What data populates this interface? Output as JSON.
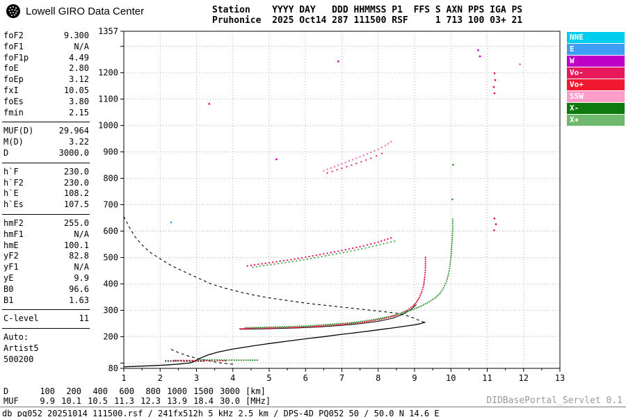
{
  "header": {
    "brand": "Lowell GIRO Data Center",
    "logo_icon": "giro-globe-icon",
    "station_line1": "Station    YYYY DAY   DDD HHMMSS P1  FFS S AXN PPS IGA PS",
    "station_line2": "Pruhonice  2025 Oct14 287 111500 RSF     1 713 100 03+ 21"
  },
  "params": {
    "groups": [
      {
        "rows": [
          [
            "foF2",
            "9.300"
          ],
          [
            "foF1",
            "N/A"
          ],
          [
            "foF1p",
            "4.49"
          ],
          [
            "foE",
            "2.80"
          ],
          [
            "foEp",
            "3.12"
          ],
          [
            "fxI",
            "10.05"
          ],
          [
            "foEs",
            "3.80"
          ],
          [
            "fmin",
            "2.15"
          ]
        ]
      },
      {
        "rows": [
          [
            "MUF(D)",
            "29.964"
          ],
          [
            "M(D)",
            "3.22"
          ],
          [
            "D",
            "3000.0"
          ]
        ]
      },
      {
        "rows": [
          [
            "h`F",
            "230.0"
          ],
          [
            "h`F2",
            "230.0"
          ],
          [
            "h`E",
            "108.2"
          ],
          [
            "h`Es",
            "107.5"
          ]
        ]
      },
      {
        "rows": [
          [
            "hmF2",
            "255.0"
          ],
          [
            "hmF1",
            "N/A"
          ],
          [
            "hmE",
            "100.1"
          ],
          [
            "yF2",
            "82.8"
          ],
          [
            "yF1",
            "N/A"
          ],
          [
            "yE",
            "9.9"
          ],
          [
            "B0",
            "96.6"
          ],
          [
            "B1",
            "1.63"
          ]
        ]
      },
      {
        "rows": [
          [
            "C-level",
            "11"
          ]
        ]
      }
    ],
    "auto_lines": [
      "Auto:",
      "Artist5",
      "500200"
    ]
  },
  "legend": {
    "items": [
      {
        "label": "NNE",
        "color": "#00CCEE"
      },
      {
        "label": "E",
        "color": "#3E9EF5"
      },
      {
        "label": "W",
        "color": "#BE00C8"
      },
      {
        "label": "Vo-",
        "color": "#E8185C"
      },
      {
        "label": "Vo+",
        "color": "#F01830"
      },
      {
        "label": "SSW",
        "color": "#FF9CC8"
      },
      {
        "label": "X-",
        "color": "#0E7A0E"
      },
      {
        "label": "X+",
        "color": "#6FB96F"
      }
    ]
  },
  "bottom_table": {
    "rows": [
      {
        "label": "D",
        "values": [
          "100",
          "200",
          "400",
          "600",
          "800",
          "1000",
          "1500",
          "3000"
        ],
        "unit": "[km]"
      },
      {
        "label": "MUF",
        "values": [
          "9.9",
          "10.1",
          "10.5",
          "11.3",
          "12.3",
          "13.9",
          "18.4",
          "30.0"
        ],
        "unit": "[MHz]"
      }
    ]
  },
  "footer": {
    "watermark": "DIDBasePortal_Servlet 0.1",
    "status": "db pq052 20251014 111500.rsf / 241fx512h 5 kHz 2.5 km / DPS-4D PQ052 50 / 50.0 N 14.6 E"
  },
  "chart_data": {
    "type": "scatter",
    "xlabel": "[MHz]",
    "ylabel": "",
    "xlim": [
      1,
      13
    ],
    "ylim": [
      80,
      1357
    ],
    "x_ticks": [
      1,
      2,
      3,
      4,
      5,
      6,
      7,
      8,
      9,
      10,
      11,
      12,
      13
    ],
    "y_tick_labels": [
      1357,
      1200,
      1100,
      1000,
      900,
      800,
      700,
      600,
      500,
      400,
      300,
      200,
      80
    ],
    "y_tick_marks": [
      80,
      100,
      200,
      300,
      400,
      500,
      600,
      700,
      800,
      900,
      1000,
      1100,
      1200,
      1300,
      1357
    ],
    "grid_h": [
      100,
      200,
      300,
      400,
      500,
      600,
      700,
      800,
      900,
      1000,
      1100,
      1200,
      1300
    ],
    "grid_v": [
      2,
      3,
      4,
      5,
      6,
      7,
      8,
      9,
      10,
      11,
      12
    ],
    "series": [
      {
        "name": "muf-transmission-curve",
        "mode": "line",
        "color": "#000000",
        "dash": "4,4",
        "width": 1.1,
        "points": [
          [
            1.0,
            655
          ],
          [
            1.15,
            615
          ],
          [
            1.3,
            580
          ],
          [
            1.5,
            548
          ],
          [
            1.7,
            522
          ],
          [
            2.0,
            495
          ],
          [
            2.3,
            470
          ],
          [
            2.6,
            450
          ],
          [
            3.0,
            425
          ],
          [
            3.4,
            400
          ],
          [
            3.8,
            383
          ],
          [
            4.2,
            369
          ],
          [
            4.6,
            357
          ],
          [
            5.0,
            347
          ],
          [
            5.4,
            339
          ],
          [
            5.8,
            331
          ],
          [
            6.2,
            324
          ],
          [
            6.6,
            318
          ],
          [
            7.0,
            312
          ],
          [
            7.4,
            306
          ],
          [
            7.8,
            300
          ],
          [
            8.2,
            294
          ],
          [
            8.5,
            289
          ],
          [
            8.7,
            283
          ],
          [
            8.9,
            275
          ],
          [
            9.05,
            266
          ],
          [
            9.2,
            258
          ],
          [
            9.3,
            252
          ]
        ]
      },
      {
        "name": "e-transmission-curve",
        "mode": "line",
        "color": "#000000",
        "dash": "4,4",
        "width": 1.1,
        "points": [
          [
            2.3,
            152
          ],
          [
            2.5,
            140
          ],
          [
            2.7,
            130
          ],
          [
            2.9,
            122
          ],
          [
            3.1,
            115
          ],
          [
            3.3,
            109
          ],
          [
            3.5,
            104
          ],
          [
            3.7,
            100
          ],
          [
            3.9,
            97
          ],
          [
            4.05,
            95
          ]
        ]
      },
      {
        "name": "true-height-profile",
        "mode": "line",
        "color": "#000000",
        "width": 1.3,
        "points": [
          [
            1.0,
            86
          ],
          [
            1.4,
            88
          ],
          [
            1.8,
            90
          ],
          [
            2.2,
            93
          ],
          [
            2.5,
            96
          ],
          [
            2.7,
            99
          ],
          [
            2.8,
            100
          ],
          [
            2.9,
            104
          ],
          [
            3.1,
            118
          ],
          [
            3.3,
            130
          ],
          [
            3.6,
            142
          ],
          [
            4.0,
            153
          ],
          [
            4.5,
            164
          ],
          [
            5.0,
            174
          ],
          [
            5.5,
            183
          ],
          [
            6.0,
            192
          ],
          [
            6.5,
            200
          ],
          [
            7.0,
            209
          ],
          [
            7.5,
            217
          ],
          [
            8.0,
            226
          ],
          [
            8.4,
            233
          ],
          [
            8.8,
            241
          ],
          [
            9.0,
            245
          ],
          [
            9.15,
            249
          ],
          [
            9.3,
            255
          ]
        ]
      },
      {
        "name": "artist-fit-f-trace",
        "mode": "line",
        "color": "#000000",
        "width": 1,
        "points": [
          [
            4.2,
            228
          ],
          [
            5.0,
            230
          ],
          [
            5.8,
            233
          ],
          [
            6.4,
            237
          ],
          [
            7.0,
            243
          ],
          [
            7.5,
            249
          ],
          [
            8.0,
            258
          ],
          [
            8.4,
            270
          ],
          [
            8.7,
            286
          ],
          [
            8.9,
            303
          ],
          [
            9.05,
            322
          ]
        ]
      },
      {
        "name": "o-mode-f-trace",
        "mode": "dots",
        "color": "#E01038",
        "step": 3,
        "r": 1.1,
        "points": [
          [
            4.2,
            230
          ],
          [
            4.5,
            231
          ],
          [
            4.8,
            232
          ],
          [
            5.1,
            233
          ],
          [
            5.4,
            234
          ],
          [
            5.7,
            235
          ],
          [
            6.0,
            237
          ],
          [
            6.3,
            239
          ],
          [
            6.6,
            242
          ],
          [
            6.9,
            245
          ],
          [
            7.2,
            249
          ],
          [
            7.5,
            253
          ],
          [
            7.8,
            259
          ],
          [
            8.1,
            267
          ],
          [
            8.4,
            277
          ],
          [
            8.6,
            287
          ],
          [
            8.8,
            300
          ],
          [
            8.95,
            315
          ],
          [
            9.05,
            330
          ],
          [
            9.13,
            348
          ],
          [
            9.2,
            370
          ],
          [
            9.25,
            395
          ],
          [
            9.28,
            425
          ],
          [
            9.3,
            460
          ],
          [
            9.3,
            500
          ]
        ]
      },
      {
        "name": "x-mode-f-trace",
        "mode": "dots",
        "color": "#3C9C3C",
        "step": 3,
        "r": 1.1,
        "points": [
          [
            4.35,
            234
          ],
          [
            4.7,
            235
          ],
          [
            5.0,
            236
          ],
          [
            5.3,
            237
          ],
          [
            5.6,
            238
          ],
          [
            5.9,
            240
          ],
          [
            6.2,
            242
          ],
          [
            6.5,
            245
          ],
          [
            6.8,
            248
          ],
          [
            7.1,
            251
          ],
          [
            7.4,
            255
          ],
          [
            7.7,
            261
          ],
          [
            8.0,
            268
          ],
          [
            8.3,
            276
          ],
          [
            8.6,
            287
          ],
          [
            8.9,
            300
          ],
          [
            9.15,
            314
          ],
          [
            9.35,
            328
          ],
          [
            9.55,
            345
          ],
          [
            9.7,
            364
          ],
          [
            9.8,
            385
          ],
          [
            9.88,
            410
          ],
          [
            9.94,
            440
          ],
          [
            9.98,
            475
          ],
          [
            10.01,
            515
          ],
          [
            10.03,
            560
          ],
          [
            10.05,
            605
          ],
          [
            10.05,
            645
          ]
        ]
      },
      {
        "name": "es-trace-black",
        "mode": "dots",
        "color": "#202020",
        "step": 4,
        "r": 1.1,
        "points": [
          [
            2.15,
            108
          ],
          [
            2.5,
            108
          ],
          [
            2.9,
            107
          ],
          [
            3.2,
            107
          ]
        ]
      },
      {
        "name": "es-trace-o",
        "mode": "dots",
        "color": "#E01038",
        "step": 4,
        "r": 1.1,
        "points": [
          [
            2.4,
            110
          ],
          [
            2.8,
            110
          ],
          [
            3.2,
            109
          ],
          [
            3.5,
            109
          ],
          [
            3.8,
            109
          ]
        ]
      },
      {
        "name": "es-trace-x",
        "mode": "dots",
        "color": "#2E8B2E",
        "step": 3.5,
        "r": 1.1,
        "points": [
          [
            3.1,
            112
          ],
          [
            3.5,
            112
          ],
          [
            3.9,
            111
          ],
          [
            4.3,
            111
          ],
          [
            4.67,
            111
          ]
        ]
      },
      {
        "name": "second-hop-o",
        "mode": "dots",
        "color": "#E8185C",
        "step": 5,
        "r": 1.2,
        "points": [
          [
            4.4,
            468
          ],
          [
            4.8,
            476
          ],
          [
            5.2,
            484
          ],
          [
            5.6,
            492
          ],
          [
            6.0,
            501
          ],
          [
            6.4,
            511
          ],
          [
            6.8,
            521
          ],
          [
            7.2,
            532
          ],
          [
            7.6,
            544
          ],
          [
            8.0,
            558
          ],
          [
            8.35,
            574
          ]
        ]
      },
      {
        "name": "second-hop-x",
        "mode": "dots",
        "color": "#58B058",
        "step": 5,
        "r": 1.2,
        "points": [
          [
            4.55,
            463
          ],
          [
            4.95,
            471
          ],
          [
            5.35,
            479
          ],
          [
            5.75,
            487
          ],
          [
            6.15,
            496
          ],
          [
            6.55,
            506
          ],
          [
            6.95,
            516
          ],
          [
            7.35,
            527
          ],
          [
            7.75,
            539
          ],
          [
            8.15,
            552
          ],
          [
            8.45,
            562
          ]
        ]
      },
      {
        "name": "multi-hop-arc",
        "mode": "dots",
        "color": "#EE72A8",
        "step": 6,
        "r": 1.2,
        "points": [
          [
            6.5,
            828
          ],
          [
            6.8,
            844
          ],
          [
            7.1,
            860
          ],
          [
            7.4,
            876
          ],
          [
            7.7,
            892
          ],
          [
            8.0,
            910
          ],
          [
            8.2,
            924
          ],
          [
            8.35,
            938
          ]
        ]
      },
      {
        "name": "multi-hop-arc-2",
        "mode": "dots",
        "color": "#E8185C",
        "step": 7,
        "r": 1.1,
        "points": [
          [
            6.6,
            820
          ],
          [
            7.0,
            838
          ],
          [
            7.4,
            856
          ],
          [
            7.8,
            876
          ],
          [
            8.1,
            894
          ]
        ]
      },
      {
        "name": "noise-scatter",
        "mode": "scatter",
        "color": "#E01038",
        "r": 1.4,
        "points": [
          [
            10.75,
            1285,
            "#CC00CC"
          ],
          [
            10.8,
            1262,
            "#CC00CC"
          ],
          [
            6.9,
            1243,
            "#CC00CC"
          ],
          [
            11.2,
            1198,
            "#E01038"
          ],
          [
            11.22,
            1172,
            "#E01038"
          ],
          [
            11.18,
            1146,
            "#E01038"
          ],
          [
            11.2,
            1122,
            "#E01038"
          ],
          [
            11.2,
            648,
            "#E01038"
          ],
          [
            11.24,
            626,
            "#E01038"
          ],
          [
            11.19,
            603,
            "#E8185C"
          ],
          [
            10.06,
            851,
            "#3C9C3C"
          ],
          [
            10.04,
            720,
            "#3C9C3C"
          ],
          [
            2.3,
            633,
            "#3E9EF5"
          ],
          [
            3.35,
            1082,
            "#E8185C"
          ],
          [
            5.2,
            872,
            "#CC00CC"
          ],
          [
            11.9,
            1232,
            "#EE72A8"
          ]
        ]
      }
    ]
  }
}
